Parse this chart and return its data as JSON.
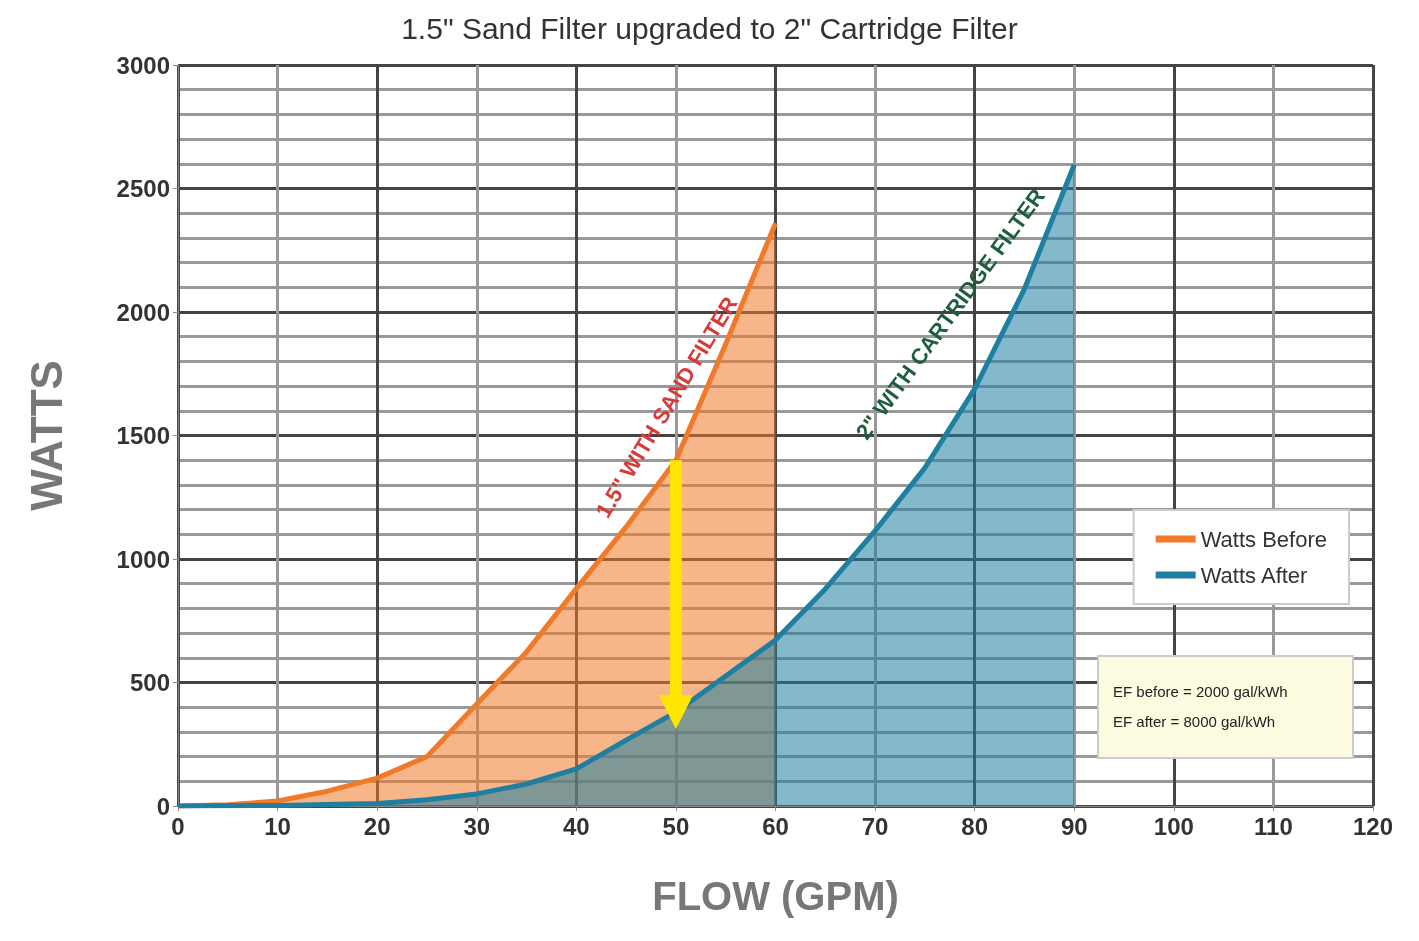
{
  "chart_data": {
    "type": "area",
    "title": "1.5\" Sand Filter upgraded to 2\" Cartridge Filter",
    "xlabel": "FLOW (GPM)",
    "ylabel": "WATTS",
    "xlim": [
      0,
      120
    ],
    "xticks": [
      0,
      10,
      20,
      30,
      40,
      50,
      60,
      70,
      80,
      90,
      100,
      110,
      120
    ],
    "ylim": [
      0,
      3000
    ],
    "yticks": [
      0,
      500,
      1000,
      1500,
      2000,
      2500,
      3000
    ],
    "grid": true,
    "legend": "right",
    "marker": "none",
    "series": [
      {
        "name": "Watts Before",
        "color": "#f07a2a",
        "x": [
          0,
          5,
          10,
          15,
          20,
          25,
          30,
          35,
          40,
          45,
          50,
          55,
          60
        ],
        "values": [
          0,
          5,
          20,
          60,
          113,
          200,
          413,
          624,
          880,
          1130,
          1400,
          1870,
          2360
        ]
      },
      {
        "name": "Watts After",
        "color": "#1e7fa0",
        "x": [
          0,
          10,
          20,
          25,
          30,
          35,
          40,
          45,
          50,
          55,
          60,
          65,
          70,
          75,
          80,
          85,
          90
        ],
        "values": [
          0,
          2,
          10,
          25,
          49,
          89,
          150,
          267,
          380,
          526,
          672,
          879,
          1114,
          1369,
          1689,
          2094,
          2596
        ]
      },
      {
        "type": "line",
        "color": "#ffe600",
        "x": [
          50,
          50
        ],
        "values": [
          1400,
          380
        ],
        "marker": "triangle"
      }
    ],
    "annotations": [
      "1.5\" WITH SAND FILTER",
      "2\" WITH CARTRIDGE FILTER",
      "EF before = 2000 gal/kWh",
      "EF after = 8000 gal/kWh"
    ]
  }
}
